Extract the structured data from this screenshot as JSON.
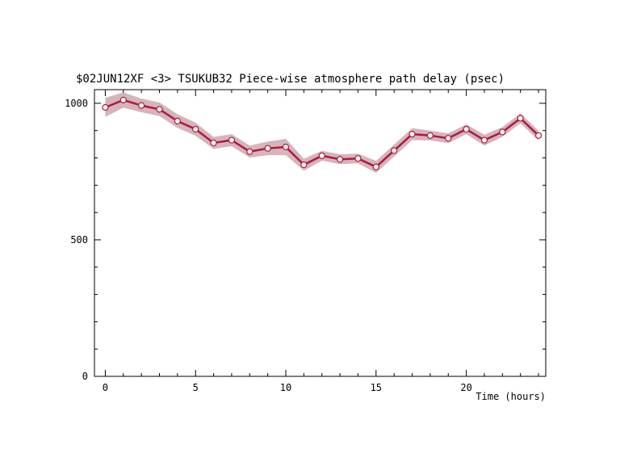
{
  "chart_data": {
    "type": "line",
    "title": "$02JUN12XF <3>  TSUKUB32  Piece-wise atmosphere path delay (psec)",
    "xlabel": "Time (hours)",
    "ylabel": "",
    "xlim": [
      -0.6,
      24.4
    ],
    "ylim": [
      0,
      1050
    ],
    "x_ticks": [
      0,
      5,
      10,
      15,
      20
    ],
    "y_ticks": [
      0,
      500,
      1000
    ],
    "grid": false,
    "series": [
      {
        "x": [
          0,
          1,
          2,
          3,
          4,
          5,
          6,
          7,
          8,
          9,
          10,
          11,
          12,
          13,
          14,
          15,
          16,
          17,
          18,
          19,
          20,
          21,
          22,
          23,
          24
        ],
        "values": [
          985,
          1012,
          992,
          978,
          935,
          905,
          855,
          865,
          823,
          835,
          840,
          775,
          808,
          795,
          798,
          767,
          827,
          887,
          882,
          872,
          905,
          865,
          895,
          945,
          882
        ],
        "error": [
          35,
          28,
          25,
          25,
          25,
          24,
          22,
          22,
          22,
          25,
          30,
          22,
          18,
          18,
          18,
          22,
          22,
          22,
          18,
          18,
          18,
          20,
          18,
          18,
          18
        ]
      }
    ],
    "colors": {
      "line": "#b3173c",
      "band": "#d4b5bb",
      "marker_fill": "#ffffff"
    }
  }
}
